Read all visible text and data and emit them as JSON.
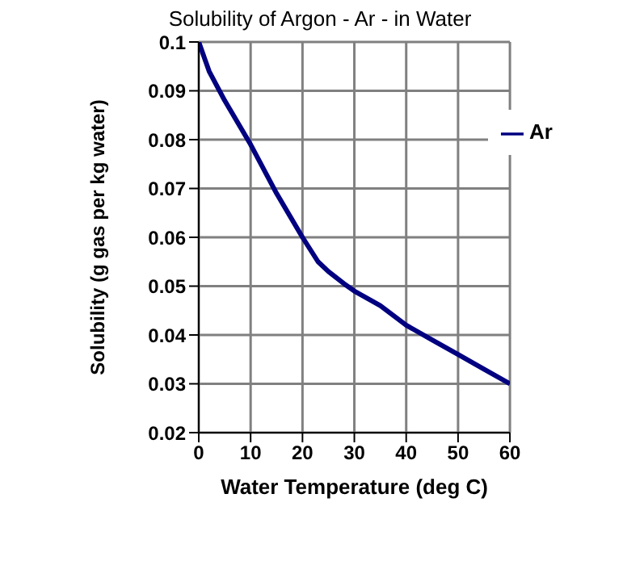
{
  "chart_data": {
    "type": "line",
    "title": "Solubility of Argon - Ar - in Water",
    "xlabel": "Water Temperature (deg C)",
    "ylabel": "Solubility (g gas per kg water)",
    "x": [
      0,
      2,
      5,
      10,
      15,
      20,
      23,
      25,
      28,
      30,
      35,
      40,
      45,
      50,
      55,
      60
    ],
    "series": [
      {
        "name": "Ar",
        "color": "#000080",
        "values": [
          0.1,
          0.094,
          0.088,
          0.079,
          0.069,
          0.06,
          0.055,
          0.053,
          0.0505,
          0.049,
          0.046,
          0.042,
          0.039,
          0.036,
          0.033,
          0.03
        ]
      }
    ],
    "xlim": [
      0,
      60
    ],
    "xticks": [
      0,
      10,
      20,
      30,
      40,
      50,
      60
    ],
    "ylim": [
      0.02,
      0.1
    ],
    "yticks": [
      0.02,
      0.03,
      0.04,
      0.05,
      0.06,
      0.07,
      0.08,
      0.09,
      0.1
    ],
    "grid": true,
    "legend": "right"
  }
}
